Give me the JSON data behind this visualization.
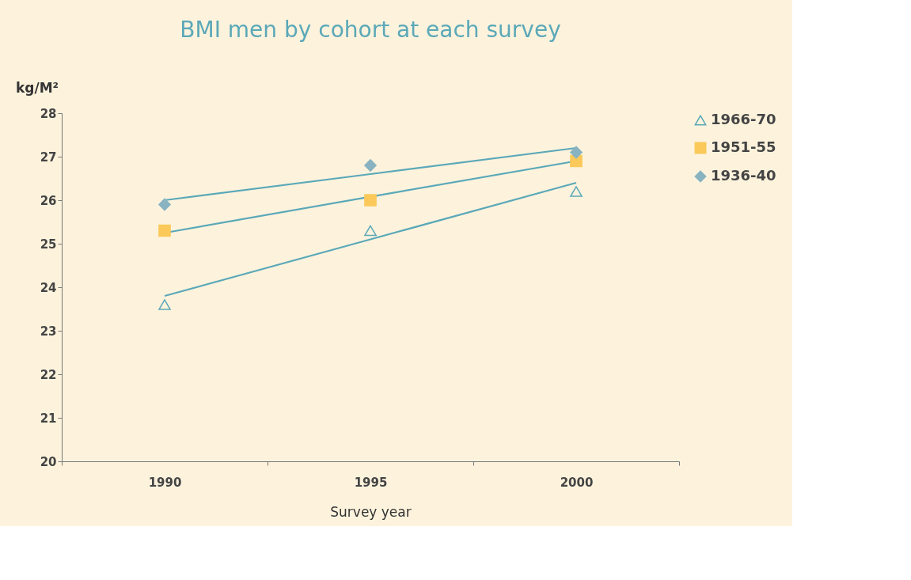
{
  "chart_data": {
    "type": "scatter",
    "title": "BMI men by cohort at each survey",
    "xlabel": "Survey year",
    "ylabel": "kg/M²",
    "categories": [
      "1990",
      "1995",
      "2000"
    ],
    "series": [
      {
        "name": "1966-70",
        "marker": "triangle",
        "color": "#5ba8b8",
        "values": [
          23.6,
          25.3,
          26.2
        ]
      },
      {
        "name": "1951-55",
        "marker": "square",
        "color": "#fac95a",
        "values": [
          25.3,
          26.0,
          26.9
        ]
      },
      {
        "name": "1936-40",
        "marker": "diamond",
        "color": "#89b3c0",
        "values": [
          25.9,
          26.8,
          27.1
        ]
      },
      {
        "type": "line",
        "color": "#5ba8b8",
        "values": [
          23.8,
          25.1,
          26.4
        ]
      },
      {
        "type": "line",
        "color": "#5ba8b8",
        "values": [
          25.25,
          26.08,
          26.9
        ]
      },
      {
        "type": "line",
        "color": "#5ba8b8",
        "values": [
          26.0,
          26.6,
          27.2
        ]
      }
    ],
    "ylim": [
      20,
      28
    ],
    "yticks": [
      20,
      21,
      22,
      23,
      24,
      25,
      26,
      27,
      28
    ],
    "grid": false,
    "legend": "right"
  }
}
